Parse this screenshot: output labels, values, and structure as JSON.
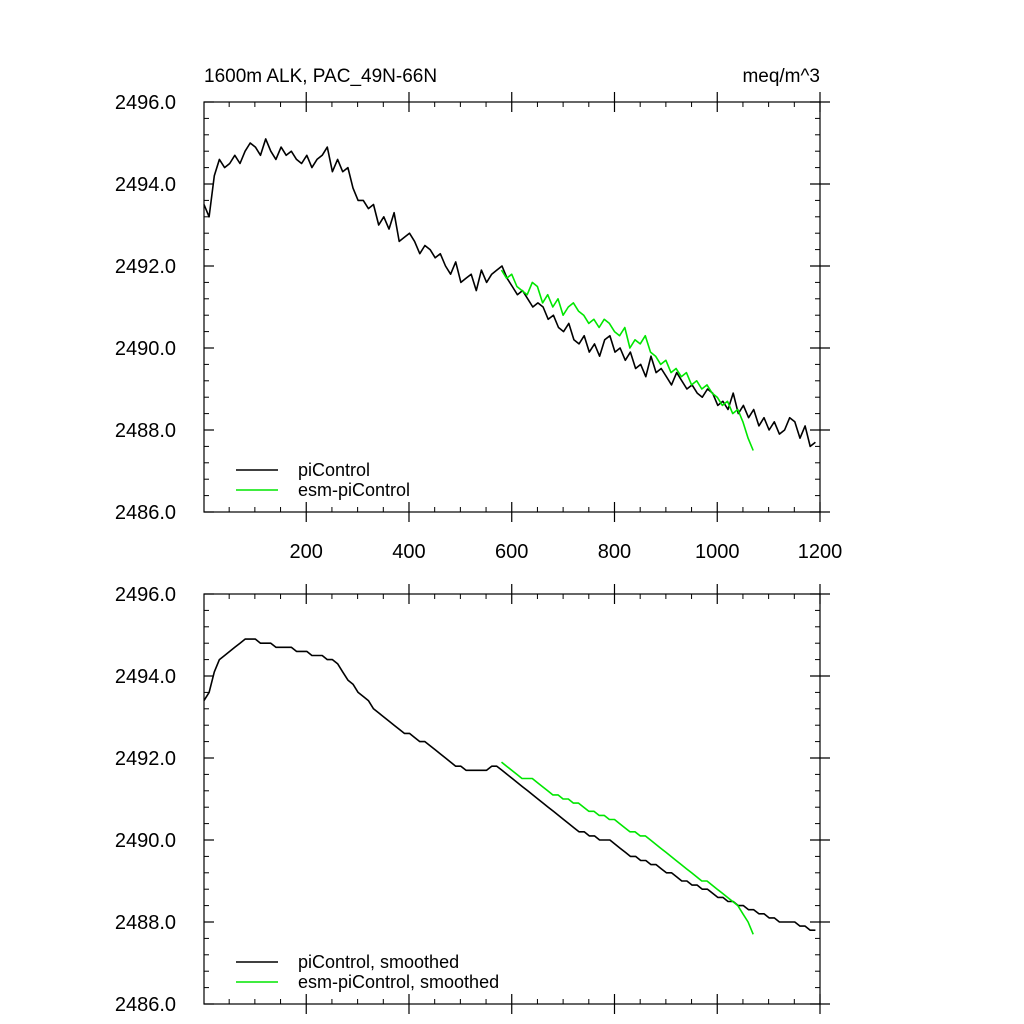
{
  "figure": {
    "title_left": "1600m ALK, PAC_49N-66N",
    "title_right": "meq/m^3"
  },
  "colors": {
    "piControl": "#000000",
    "esm_piControl": "#00e600",
    "axis": "#000000",
    "background": "#ffffff"
  },
  "chart_data": [
    {
      "type": "line",
      "title": "1600m ALK, PAC_49N-66N",
      "units": "meq/m^3",
      "xlabel": "",
      "ylabel": "",
      "xlim": [
        1,
        1200
      ],
      "ylim": [
        2486.0,
        2496.0
      ],
      "xticks": [
        200,
        400,
        600,
        800,
        1000,
        1200
      ],
      "yticks": [
        "2486.0",
        "2488.0",
        "2490.0",
        "2492.0",
        "2494.0",
        "2496.0"
      ],
      "show_x_tick_labels": true,
      "legend": [
        "piControl",
        "esm-piControl"
      ],
      "legend_position": "bottom-left",
      "series": [
        {
          "name": "piControl",
          "color": "#000000",
          "x_start": 1,
          "x_step": 10,
          "values": [
            2493.5,
            2493.2,
            2494.2,
            2494.6,
            2494.4,
            2494.5,
            2494.7,
            2494.5,
            2494.8,
            2495.0,
            2494.9,
            2494.7,
            2495.1,
            2494.8,
            2494.6,
            2494.9,
            2494.7,
            2494.8,
            2494.6,
            2494.5,
            2494.7,
            2494.4,
            2494.6,
            2494.7,
            2494.9,
            2494.3,
            2494.6,
            2494.3,
            2494.4,
            2493.9,
            2493.6,
            2493.6,
            2493.4,
            2493.5,
            2493.0,
            2493.2,
            2492.9,
            2493.3,
            2492.6,
            2492.7,
            2492.8,
            2492.6,
            2492.3,
            2492.5,
            2492.4,
            2492.2,
            2492.3,
            2492.0,
            2491.8,
            2492.1,
            2491.6,
            2491.7,
            2491.8,
            2491.4,
            2491.9,
            2491.6,
            2491.8,
            2491.9,
            2492.0,
            2491.7,
            2491.5,
            2491.3,
            2491.4,
            2491.2,
            2491.0,
            2491.1,
            2491.0,
            2490.7,
            2490.8,
            2490.5,
            2490.4,
            2490.6,
            2490.2,
            2490.1,
            2490.3,
            2489.9,
            2490.1,
            2489.8,
            2490.2,
            2490.3,
            2489.9,
            2490.0,
            2489.7,
            2489.9,
            2489.5,
            2489.6,
            2489.3,
            2489.8,
            2489.4,
            2489.5,
            2489.3,
            2489.1,
            2489.4,
            2489.2,
            2489.0,
            2489.1,
            2488.9,
            2488.8,
            2489.0,
            2488.9,
            2488.6,
            2488.7,
            2488.5,
            2488.9,
            2488.4,
            2488.6,
            2488.3,
            2488.5,
            2488.1,
            2488.3,
            2488.0,
            2488.2,
            2487.9,
            2488.0,
            2488.3,
            2488.2,
            2487.8,
            2488.1,
            2487.6,
            2487.7
          ]
        },
        {
          "name": "esm-piControl",
          "color": "#00e600",
          "x_start": 580,
          "x_step": 10,
          "values": [
            2491.9,
            2491.7,
            2491.8,
            2491.5,
            2491.4,
            2491.3,
            2491.6,
            2491.5,
            2491.1,
            2491.3,
            2491.0,
            2491.2,
            2490.8,
            2491.0,
            2491.1,
            2490.9,
            2490.8,
            2490.6,
            2490.7,
            2490.5,
            2490.7,
            2490.6,
            2490.4,
            2490.3,
            2490.5,
            2490.0,
            2490.2,
            2490.1,
            2490.3,
            2489.9,
            2489.8,
            2489.6,
            2489.7,
            2489.4,
            2489.5,
            2489.3,
            2489.4,
            2489.1,
            2489.2,
            2489.0,
            2489.1,
            2488.9,
            2488.8,
            2488.6,
            2488.7,
            2488.4,
            2488.5,
            2488.2,
            2487.8,
            2487.5
          ]
        }
      ]
    },
    {
      "type": "line",
      "title": "",
      "xlabel": "",
      "ylabel": "",
      "xlim": [
        1,
        1200
      ],
      "ylim": [
        2486.0,
        2496.0
      ],
      "xticks": [
        200,
        400,
        600,
        800,
        1000,
        1200
      ],
      "yticks": [
        "2486.0",
        "2488.0",
        "2490.0",
        "2492.0",
        "2494.0",
        "2496.0"
      ],
      "show_x_tick_labels": false,
      "legend": [
        "piControl, smoothed",
        "esm-piControl, smoothed"
      ],
      "legend_position": "bottom-left",
      "series": [
        {
          "name": "piControl, smoothed",
          "color": "#000000",
          "x_start": 1,
          "x_step": 10,
          "values": [
            2493.4,
            2493.6,
            2494.1,
            2494.4,
            2494.5,
            2494.6,
            2494.7,
            2494.8,
            2494.9,
            2494.9,
            2494.9,
            2494.8,
            2494.8,
            2494.8,
            2494.7,
            2494.7,
            2494.7,
            2494.7,
            2494.6,
            2494.6,
            2494.6,
            2494.5,
            2494.5,
            2494.5,
            2494.4,
            2494.4,
            2494.3,
            2494.1,
            2493.9,
            2493.8,
            2493.6,
            2493.5,
            2493.4,
            2493.2,
            2493.1,
            2493.0,
            2492.9,
            2492.8,
            2492.7,
            2492.6,
            2492.6,
            2492.5,
            2492.4,
            2492.4,
            2492.3,
            2492.2,
            2492.1,
            2492.0,
            2491.9,
            2491.8,
            2491.8,
            2491.7,
            2491.7,
            2491.7,
            2491.7,
            2491.7,
            2491.8,
            2491.8,
            2491.7,
            2491.6,
            2491.5,
            2491.4,
            2491.3,
            2491.2,
            2491.1,
            2491.0,
            2490.9,
            2490.8,
            2490.7,
            2490.6,
            2490.5,
            2490.4,
            2490.3,
            2490.2,
            2490.2,
            2490.1,
            2490.1,
            2490.0,
            2490.0,
            2490.0,
            2489.9,
            2489.8,
            2489.7,
            2489.6,
            2489.6,
            2489.5,
            2489.5,
            2489.4,
            2489.4,
            2489.3,
            2489.2,
            2489.2,
            2489.1,
            2489.0,
            2489.0,
            2488.9,
            2488.9,
            2488.8,
            2488.8,
            2488.7,
            2488.6,
            2488.6,
            2488.5,
            2488.5,
            2488.4,
            2488.4,
            2488.3,
            2488.3,
            2488.2,
            2488.2,
            2488.1,
            2488.1,
            2488.0,
            2488.0,
            2488.0,
            2488.0,
            2487.9,
            2487.9,
            2487.8,
            2487.8
          ]
        },
        {
          "name": "esm-piControl, smoothed",
          "color": "#00e600",
          "x_start": 580,
          "x_step": 10,
          "values": [
            2491.9,
            2491.8,
            2491.7,
            2491.6,
            2491.5,
            2491.5,
            2491.5,
            2491.4,
            2491.3,
            2491.2,
            2491.1,
            2491.1,
            2491.0,
            2491.0,
            2490.9,
            2490.9,
            2490.8,
            2490.7,
            2490.7,
            2490.6,
            2490.6,
            2490.5,
            2490.5,
            2490.4,
            2490.3,
            2490.2,
            2490.2,
            2490.1,
            2490.1,
            2490.0,
            2489.9,
            2489.8,
            2489.7,
            2489.6,
            2489.5,
            2489.4,
            2489.3,
            2489.2,
            2489.1,
            2489.0,
            2489.0,
            2488.9,
            2488.8,
            2488.7,
            2488.6,
            2488.5,
            2488.4,
            2488.2,
            2488.0,
            2487.7
          ]
        }
      ]
    }
  ]
}
